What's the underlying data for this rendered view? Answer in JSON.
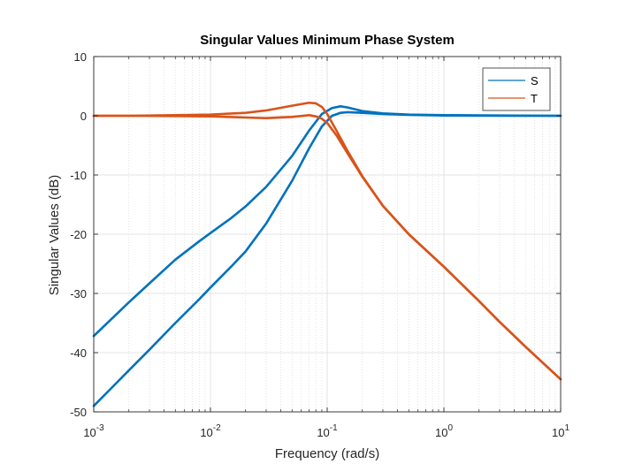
{
  "chart_data": {
    "type": "line",
    "title": "Singular Values Minimum Phase System",
    "xlabel": "Frequency (rad/s)",
    "ylabel": "Singular Values (dB)",
    "xscale": "log",
    "xlim": [
      0.001,
      10
    ],
    "ylim": [
      -50,
      10
    ],
    "grid": "on, with minor log grid",
    "legend_position": "top-right",
    "x_ticks": [
      {
        "base": "10",
        "exp": "-3",
        "value": 0.001
      },
      {
        "base": "10",
        "exp": "-2",
        "value": 0.01
      },
      {
        "base": "10",
        "exp": "-1",
        "value": 0.1
      },
      {
        "base": "10",
        "exp": "0",
        "value": 1
      },
      {
        "base": "10",
        "exp": "1",
        "value": 10
      }
    ],
    "y_ticks": [
      {
        "label": "10",
        "value": 10
      },
      {
        "label": "0",
        "value": 0
      },
      {
        "label": "-10",
        "value": -10
      },
      {
        "label": "-20",
        "value": -20
      },
      {
        "label": "-30",
        "value": -30
      },
      {
        "label": "-40",
        "value": -40
      },
      {
        "label": "-50",
        "value": -50
      }
    ],
    "series": [
      {
        "name": "S",
        "color": "#0072BD",
        "lines": [
          {
            "x": [
              0.001,
              0.002,
              0.003,
              0.005,
              0.008,
              0.01,
              0.015,
              0.02,
              0.03,
              0.05,
              0.07,
              0.09,
              0.11,
              0.13,
              0.15,
              0.2,
              0.3,
              0.5,
              1,
              3,
              10
            ],
            "y": [
              -37.2,
              -31.5,
              -28.3,
              -24.3,
              -21.2,
              -19.8,
              -17.3,
              -15.3,
              -12.0,
              -6.8,
              -2.5,
              0.3,
              1.3,
              1.6,
              1.4,
              0.8,
              0.4,
              0.2,
              0.1,
              0.05,
              0.0
            ]
          },
          {
            "x": [
              0.001,
              0.002,
              0.003,
              0.005,
              0.008,
              0.01,
              0.015,
              0.02,
              0.03,
              0.05,
              0.07,
              0.09,
              0.11,
              0.13,
              0.15,
              0.2,
              0.3,
              0.5,
              1,
              3,
              10
            ],
            "y": [
              -49.0,
              -43.0,
              -39.5,
              -35.0,
              -31.0,
              -29.0,
              -25.5,
              -22.9,
              -18.2,
              -11.0,
              -5.5,
              -1.8,
              0.0,
              0.5,
              0.6,
              0.5,
              0.3,
              0.15,
              0.05,
              0.0,
              0.0
            ]
          }
        ]
      },
      {
        "name": "T",
        "color": "#D95319",
        "lines": [
          {
            "x": [
              0.001,
              0.002,
              0.005,
              0.01,
              0.02,
              0.03,
              0.05,
              0.07,
              0.08,
              0.09,
              0.1,
              0.12,
              0.15,
              0.2,
              0.3,
              0.5,
              1,
              2,
              3,
              5,
              10
            ],
            "y": [
              0.0,
              0.0,
              0.1,
              0.2,
              0.5,
              0.9,
              1.7,
              2.2,
              2.1,
              1.5,
              0.3,
              -2.5,
              -6.0,
              -10.2,
              -15.2,
              -20.0,
              -25.5,
              -31.3,
              -34.8,
              -39.0,
              -44.5
            ]
          },
          {
            "x": [
              0.001,
              0.002,
              0.005,
              0.01,
              0.02,
              0.03,
              0.05,
              0.07,
              0.08,
              0.09,
              0.1,
              0.12,
              0.15,
              0.2,
              0.3,
              0.5,
              1,
              2,
              3,
              5,
              10
            ],
            "y": [
              0.0,
              0.0,
              -0.05,
              -0.1,
              -0.3,
              -0.4,
              -0.2,
              0.1,
              -0.1,
              -0.5,
              -1.2,
              -3.3,
              -6.4,
              -10.3,
              -15.2,
              -20.0,
              -25.5,
              -31.3,
              -34.8,
              -39.0,
              -44.5
            ]
          }
        ]
      }
    ]
  }
}
